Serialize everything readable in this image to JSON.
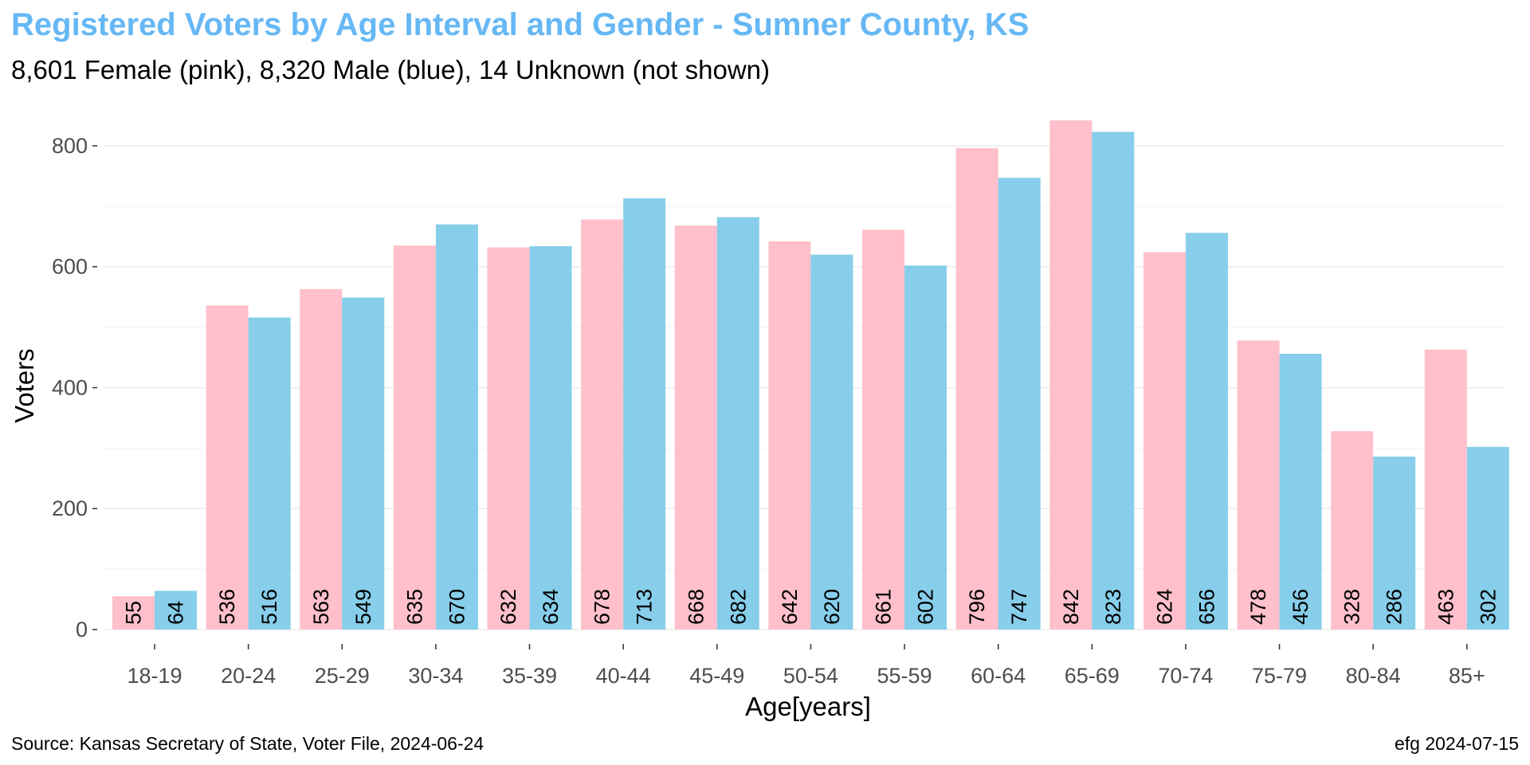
{
  "chart_data": {
    "type": "bar",
    "title": "Registered Voters by Age Interval and Gender - Sumner County, KS",
    "subtitle": "8,601 Female (pink),  8,320 Male (blue),  14 Unknown (not shown)",
    "xlabel": "Age[years]",
    "ylabel": "Voters",
    "ylim": [
      0,
      840
    ],
    "yticks": [
      0,
      200,
      400,
      600,
      800
    ],
    "grid": true,
    "legend": "none",
    "categories": [
      "18-19",
      "20-24",
      "25-29",
      "30-34",
      "35-39",
      "40-44",
      "45-49",
      "50-54",
      "55-59",
      "60-64",
      "65-69",
      "70-74",
      "75-79",
      "80-84",
      "85+"
    ],
    "series": [
      {
        "name": "Female",
        "color": "#FFC0CB",
        "values": [
          55,
          536,
          563,
          635,
          632,
          678,
          668,
          642,
          661,
          796,
          842,
          624,
          478,
          328,
          463
        ]
      },
      {
        "name": "Male",
        "color": "#87CEEB",
        "values": [
          64,
          516,
          549,
          670,
          634,
          713,
          682,
          620,
          602,
          747,
          823,
          656,
          456,
          286,
          302
        ]
      }
    ],
    "title_color": "#66B8F5",
    "caption_left": "Source: Kansas Secretary of State, Voter File, 2024-06-24",
    "caption_right": "efg 2024-07-15"
  }
}
